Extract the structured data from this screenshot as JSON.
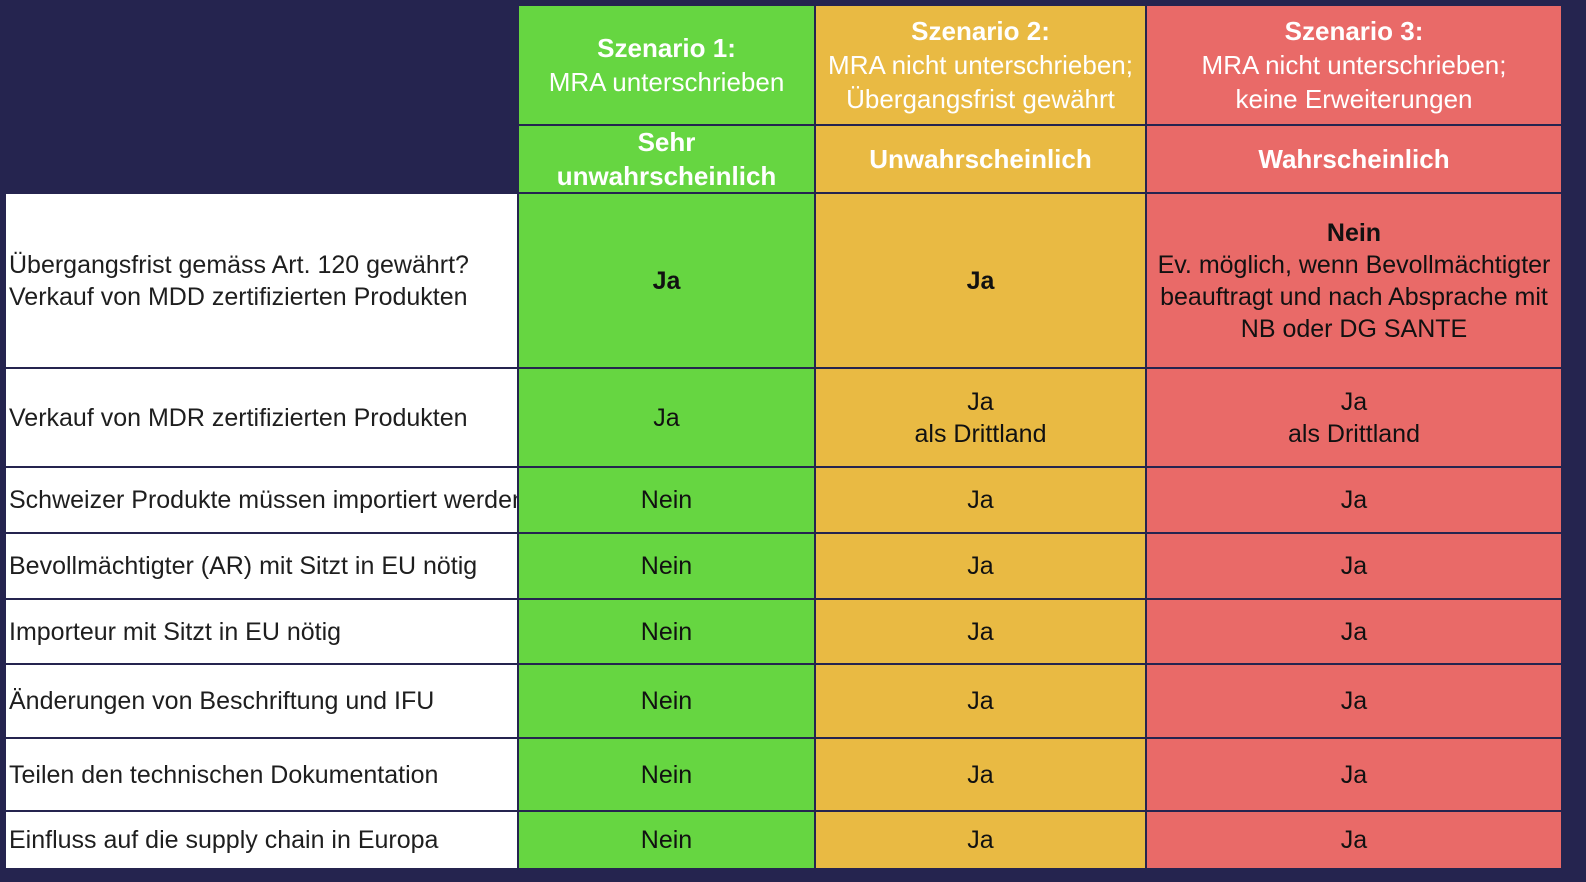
{
  "colors": {
    "background": "#25244f",
    "scenario1": "#66d641",
    "scenario2": "#e9ba43",
    "scenario3": "#e96a68",
    "label_bg": "#ffffff"
  },
  "scenarios": [
    {
      "title": "Szenario 1:",
      "subtitle_lines": [
        "MRA unterschrieben"
      ],
      "likelihood_lines": [
        "Sehr",
        "unwahrscheinlich"
      ]
    },
    {
      "title": "Szenario 2:",
      "subtitle_lines": [
        "MRA nicht unterschrieben;",
        "Übergangsfrist gewährt"
      ],
      "likelihood_lines": [
        "Unwahrscheinlich"
      ]
    },
    {
      "title": "Szenario 3:",
      "subtitle_lines": [
        "MRA nicht unterschrieben;",
        "keine Erweiterungen"
      ],
      "likelihood_lines": [
        "Wahrscheinlich"
      ]
    }
  ],
  "rows": [
    {
      "label_lines": [
        "Übergangsfrist gemäss Art. 120 gewährt?",
        "Verkauf von MDD zertifizierten Produkten"
      ],
      "values": [
        {
          "bold": "Ja",
          "lines": []
        },
        {
          "bold": "Ja",
          "lines": []
        },
        {
          "bold": "Nein",
          "lines": [
            "Ev. möglich, wenn Bevollmächtigter",
            "beauftragt und nach Absprache mit",
            "NB oder DG SANTE"
          ]
        }
      ]
    },
    {
      "label_lines": [
        "Verkauf von MDR zertifizierten Produkten"
      ],
      "values": [
        {
          "bold": "",
          "lines": [
            "Ja"
          ]
        },
        {
          "bold": "",
          "lines": [
            "Ja",
            "als Drittland"
          ]
        },
        {
          "bold": "",
          "lines": [
            "Ja",
            "als Drittland"
          ]
        }
      ]
    },
    {
      "label_lines": [
        "Schweizer Produkte müssen importiert werden"
      ],
      "values": [
        {
          "bold": "",
          "lines": [
            "Nein"
          ]
        },
        {
          "bold": "",
          "lines": [
            "Ja"
          ]
        },
        {
          "bold": "",
          "lines": [
            "Ja"
          ]
        }
      ]
    },
    {
      "label_lines": [
        "Bevollmächtigter (AR) mit Sitzt in EU nötig"
      ],
      "values": [
        {
          "bold": "",
          "lines": [
            "Nein"
          ]
        },
        {
          "bold": "",
          "lines": [
            "Ja"
          ]
        },
        {
          "bold": "",
          "lines": [
            "Ja"
          ]
        }
      ]
    },
    {
      "label_lines": [
        "Importeur mit Sitzt in EU nötig"
      ],
      "values": [
        {
          "bold": "",
          "lines": [
            "Nein"
          ]
        },
        {
          "bold": "",
          "lines": [
            "Ja"
          ]
        },
        {
          "bold": "",
          "lines": [
            "Ja"
          ]
        }
      ]
    },
    {
      "label_lines": [
        "Änderungen von Beschriftung und IFU"
      ],
      "values": [
        {
          "bold": "",
          "lines": [
            "Nein"
          ]
        },
        {
          "bold": "",
          "lines": [
            "Ja"
          ]
        },
        {
          "bold": "",
          "lines": [
            "Ja"
          ]
        }
      ]
    },
    {
      "label_lines": [
        "Teilen den technischen Dokumentation"
      ],
      "values": [
        {
          "bold": "",
          "lines": [
            "Nein"
          ]
        },
        {
          "bold": "",
          "lines": [
            "Ja"
          ]
        },
        {
          "bold": "",
          "lines": [
            "Ja"
          ]
        }
      ]
    },
    {
      "label_lines": [
        "Einfluss auf die supply chain in Europa"
      ],
      "values": [
        {
          "bold": "",
          "lines": [
            "Nein"
          ]
        },
        {
          "bold": "",
          "lines": [
            "Ja"
          ]
        },
        {
          "bold": "",
          "lines": [
            "Ja"
          ]
        }
      ]
    }
  ]
}
